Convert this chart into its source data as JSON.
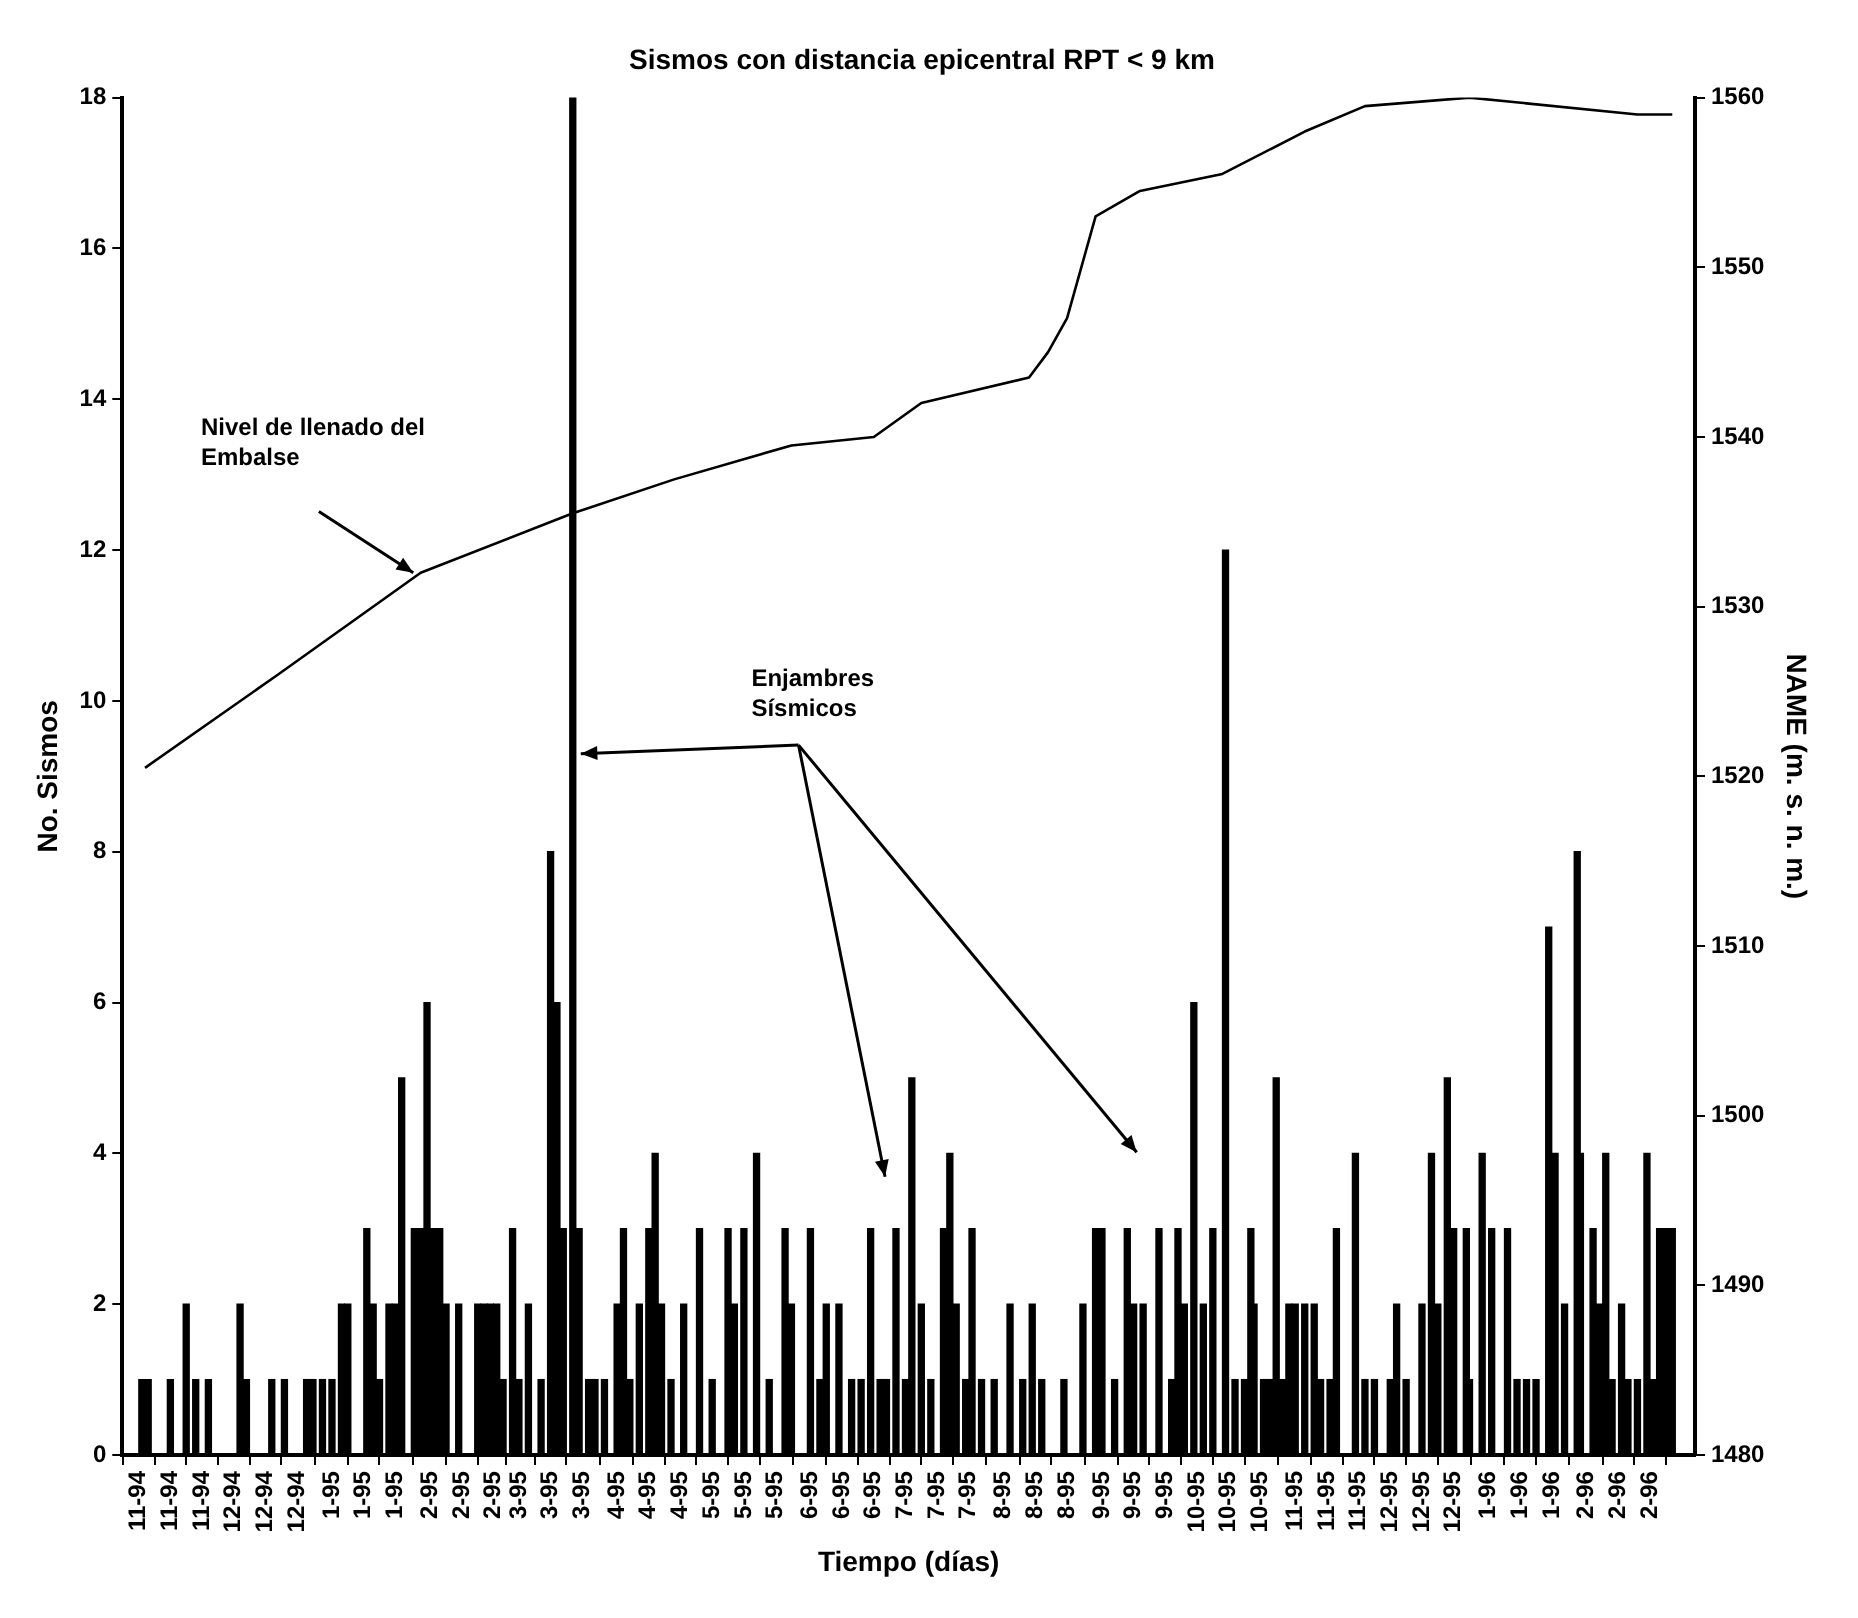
{
  "chart_data": {
    "type": "bar",
    "title": "Sismos con distancia epicentral RPT < 9 km",
    "xlabel": "Tiempo (días)",
    "ylabel": "No. Sismos",
    "y2label": "NAME (m. s. n. m.)",
    "annotations": [
      "Nivel de llenado del Embalse",
      {
        "text": "Enjambres Sísmicos",
        "x": "1995-03-18",
        "y": 9.3
      }
    ],
    "xlim": [
      "1994-11-01",
      "1996-03-01"
    ],
    "xticks": [
      {
        "value": "1994-11-01",
        "label": "11-94"
      },
      {
        "value": "1994-11-11",
        "label": "11-94"
      },
      {
        "value": "1994-11-21",
        "label": "11-94"
      },
      {
        "value": "1994-12-01",
        "label": "12-94"
      },
      {
        "value": "1994-12-11",
        "label": "12-94"
      },
      {
        "value": "1994-12-21",
        "label": "12-94"
      },
      {
        "value": "1995-01-01",
        "label": "1-95"
      },
      {
        "value": "1995-01-11",
        "label": "1-95"
      },
      {
        "value": "1995-01-21",
        "label": "1-95"
      },
      {
        "value": "1995-02-01",
        "label": "2-95"
      },
      {
        "value": "1995-02-11",
        "label": "2-95"
      },
      {
        "value": "1995-02-21",
        "label": "2-95"
      },
      {
        "value": "1995-03-01",
        "label": "3-95"
      },
      {
        "value": "1995-03-11",
        "label": "3-95"
      },
      {
        "value": "1995-03-21",
        "label": "3-95"
      },
      {
        "value": "1995-04-01",
        "label": "4-95"
      },
      {
        "value": "1995-04-11",
        "label": "4-95"
      },
      {
        "value": "1995-04-21",
        "label": "4-95"
      },
      {
        "value": "1995-05-01",
        "label": "5-95"
      },
      {
        "value": "1995-05-11",
        "label": "5-95"
      },
      {
        "value": "1995-05-21",
        "label": "5-95"
      },
      {
        "value": "1995-06-01",
        "label": "6-95"
      },
      {
        "value": "1995-06-11",
        "label": "6-95"
      },
      {
        "value": "1995-06-21",
        "label": "6-95"
      },
      {
        "value": "1995-07-01",
        "label": "7-95"
      },
      {
        "value": "1995-07-11",
        "label": "7-95"
      },
      {
        "value": "1995-07-21",
        "label": "7-95"
      },
      {
        "value": "1995-08-01",
        "label": "8-95"
      },
      {
        "value": "1995-08-11",
        "label": "8-95"
      },
      {
        "value": "1995-08-21",
        "label": "8-95"
      },
      {
        "value": "1995-09-01",
        "label": "9-95"
      },
      {
        "value": "1995-09-11",
        "label": "9-95"
      },
      {
        "value": "1995-09-21",
        "label": "9-95"
      },
      {
        "value": "1995-10-01",
        "label": "10-95"
      },
      {
        "value": "1995-10-11",
        "label": "10-95"
      },
      {
        "value": "1995-10-21",
        "label": "10-95"
      },
      {
        "value": "1995-11-01",
        "label": "11-95"
      },
      {
        "value": "1995-11-11",
        "label": "11-95"
      },
      {
        "value": "1995-11-21",
        "label": "11-95"
      },
      {
        "value": "1995-12-01",
        "label": "12-95"
      },
      {
        "value": "1995-12-11",
        "label": "12-95"
      },
      {
        "value": "1995-12-21",
        "label": "12-95"
      },
      {
        "value": "1996-01-01",
        "label": "1-96"
      },
      {
        "value": "1996-01-11",
        "label": "1-96"
      },
      {
        "value": "1996-01-21",
        "label": "1-96"
      },
      {
        "value": "1996-02-01",
        "label": "2-96"
      },
      {
        "value": "1996-02-11",
        "label": "2-96"
      },
      {
        "value": "1996-02-21",
        "label": "2-96"
      }
    ],
    "ylim": [
      0,
      18
    ],
    "yticks": [
      0,
      2,
      4,
      6,
      8,
      10,
      12,
      14,
      16,
      18
    ],
    "y2lim": [
      1480,
      1560
    ],
    "y2ticks": [
      1480,
      1490,
      1500,
      1510,
      1520,
      1530,
      1540,
      1550,
      1560
    ],
    "grid": false,
    "legend": false,
    "series": [
      {
        "color": "#000000",
        "x": [
          "1994-11-02",
          "1994-11-04",
          "1994-11-11",
          "1994-11-16",
          "1994-11-19",
          "1994-11-23",
          "1994-12-03",
          "1994-12-05",
          "1994-12-13",
          "1994-12-17",
          "1994-12-24",
          "1994-12-26",
          "1994-12-29",
          "1995-01-01",
          "1995-01-04",
          "1995-01-06",
          "1995-01-12",
          "1995-01-14",
          "1995-01-16",
          "1995-01-19",
          "1995-01-21",
          "1995-01-23",
          "1995-01-27",
          "1995-01-29",
          "1995-01-31",
          "1995-02-02",
          "1995-02-04",
          "1995-02-06",
          "1995-02-10",
          "1995-02-16",
          "1995-02-18",
          "1995-02-20",
          "1995-02-22",
          "1995-02-24",
          "1995-02-27",
          "1995-03-01",
          "1995-03-04",
          "1995-03-08",
          "1995-03-11",
          "1995-03-13",
          "1995-03-15",
          "1995-03-18",
          "1995-03-20",
          "1995-03-23",
          "1995-03-25",
          "1995-03-28",
          "1995-04-01",
          "1995-04-03",
          "1995-04-05",
          "1995-04-08",
          "1995-04-11",
          "1995-04-13",
          "1995-04-15",
          "1995-04-18",
          "1995-04-22",
          "1995-04-27",
          "1995-05-01",
          "1995-05-06",
          "1995-05-08",
          "1995-05-11",
          "1995-05-15",
          "1995-05-19",
          "1995-05-24",
          "1995-05-26",
          "1995-06-01",
          "1995-06-04",
          "1995-06-06",
          "1995-06-10",
          "1995-06-14",
          "1995-06-17",
          "1995-06-20",
          "1995-06-23",
          "1995-06-25",
          "1995-06-28",
          "1995-07-01",
          "1995-07-03",
          "1995-07-06",
          "1995-07-09",
          "1995-07-13",
          "1995-07-15",
          "1995-07-17",
          "1995-07-20",
          "1995-07-22",
          "1995-07-25",
          "1995-07-29",
          "1995-08-03",
          "1995-08-07",
          "1995-08-10",
          "1995-08-13",
          "1995-08-20",
          "1995-08-26",
          "1995-08-30",
          "1995-09-01",
          "1995-09-05",
          "1995-09-09",
          "1995-09-11",
          "1995-09-14",
          "1995-09-19",
          "1995-09-23",
          "1995-09-25",
          "1995-09-27",
          "1995-09-30",
          "1995-10-03",
          "1995-10-06",
          "1995-10-10",
          "1995-10-13",
          "1995-10-16",
          "1995-10-18",
          "1995-10-19",
          "1995-10-22",
          "1995-10-24",
          "1995-10-26",
          "1995-10-28",
          "1995-10-30",
          "1995-11-01",
          "1995-11-04",
          "1995-11-07",
          "1995-11-09",
          "1995-11-12",
          "1995-11-14",
          "1995-11-20",
          "1995-11-23",
          "1995-11-26",
          "1995-12-01",
          "1995-12-03",
          "1995-12-06",
          "1995-12-11",
          "1995-12-14",
          "1995-12-16",
          "1995-12-19",
          "1995-12-21",
          "1995-12-25",
          "1995-12-26",
          "1995-12-30",
          "1996-01-02",
          "1996-01-07",
          "1996-01-10",
          "1996-01-13",
          "1996-01-16",
          "1996-01-20",
          "1996-01-22",
          "1996-01-25",
          "1996-01-29",
          "1996-01-30",
          "1996-02-03",
          "1996-02-05",
          "1996-02-07",
          "1996-02-09",
          "1996-02-12",
          "1996-02-14",
          "1996-02-17",
          "1996-02-20",
          "1996-02-22",
          "1996-02-24",
          "1996-02-26",
          "1996-02-28"
        ],
        "values": [
          1,
          1,
          1,
          2,
          1,
          1,
          2,
          1,
          1,
          1,
          1,
          1,
          1,
          1,
          2,
          2,
          3,
          2,
          1,
          2,
          2,
          5,
          3,
          3,
          6,
          3,
          3,
          2,
          2,
          2,
          2,
          2,
          2,
          1,
          3,
          1,
          2,
          1,
          8,
          6,
          3,
          18,
          3,
          1,
          1,
          1,
          2,
          3,
          1,
          2,
          3,
          4,
          2,
          1,
          2,
          3,
          1,
          3,
          2,
          3,
          4,
          1,
          3,
          2,
          3,
          1,
          2,
          2,
          1,
          1,
          3,
          1,
          1,
          3,
          1,
          5,
          2,
          1,
          3,
          4,
          2,
          1,
          3,
          1,
          1,
          2,
          1,
          2,
          1,
          1,
          2,
          3,
          3,
          1,
          3,
          2,
          2,
          3,
          1,
          3,
          2,
          6,
          2,
          3,
          12,
          1,
          1,
          3,
          2,
          1,
          1,
          5,
          1,
          2,
          2,
          2,
          2,
          1,
          1,
          3,
          4,
          1,
          1,
          1,
          2,
          1,
          2,
          4,
          2,
          5,
          3,
          3,
          1,
          4,
          3,
          3,
          1,
          1,
          1,
          7,
          4,
          2,
          8,
          4,
          3,
          2,
          4,
          1,
          2,
          1,
          1,
          4,
          1,
          3,
          3,
          3
        ]
      },
      {
        "type": "line",
        "axis": "y2",
        "color": "#000000",
        "line_style": "solid",
        "marker": "none",
        "x": [
          "1994-11-03",
          "1994-12-15",
          "1995-01-29",
          "1995-03-18",
          "1995-04-19",
          "1995-05-26",
          "1995-06-21",
          "1995-07-06",
          "1995-08-09",
          "1995-08-15",
          "1995-08-21",
          "1995-08-30",
          "1995-09-13",
          "1995-10-09",
          "1995-11-04",
          "1995-11-23",
          "1995-12-26",
          "1996-02-17",
          "1996-02-28"
        ],
        "values": [
          1520.5,
          1526,
          1532,
          1535.5,
          1537.5,
          1539.5,
          1540,
          1542,
          1543.5,
          1545,
          1547,
          1553,
          1554.5,
          1555.5,
          1558,
          1559.5,
          1560,
          1559,
          1559
        ]
      }
    ]
  }
}
